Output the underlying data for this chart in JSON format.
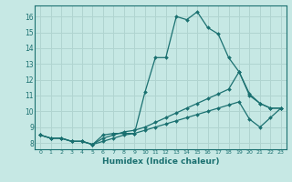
{
  "xlabel": "Humidex (Indice chaleur)",
  "background_color": "#c6e8e4",
  "grid_color": "#b0d4d0",
  "line_color": "#1a7070",
  "xlim": [
    -0.5,
    23.5
  ],
  "ylim": [
    7.6,
    16.7
  ],
  "xticks": [
    0,
    1,
    2,
    3,
    4,
    5,
    6,
    7,
    8,
    9,
    10,
    11,
    12,
    13,
    14,
    15,
    16,
    17,
    18,
    19,
    20,
    21,
    22,
    23
  ],
  "yticks": [
    8,
    9,
    10,
    11,
    12,
    13,
    14,
    15,
    16
  ],
  "series1_x": [
    0,
    1,
    2,
    3,
    4,
    5,
    6,
    7,
    8,
    9,
    10,
    11,
    12,
    13,
    14,
    15,
    16,
    17,
    18,
    19,
    20,
    21,
    22,
    23
  ],
  "series1_y": [
    8.5,
    8.3,
    8.3,
    8.1,
    8.1,
    7.9,
    8.5,
    8.6,
    8.6,
    8.6,
    11.2,
    13.4,
    13.4,
    16.0,
    15.8,
    16.3,
    15.3,
    14.9,
    13.4,
    12.5,
    11.1,
    10.5,
    10.2,
    10.2
  ],
  "series2_x": [
    0,
    1,
    2,
    3,
    4,
    5,
    6,
    7,
    8,
    9,
    10,
    11,
    12,
    13,
    14,
    15,
    16,
    17,
    18,
    19,
    20,
    21,
    22,
    23
  ],
  "series2_y": [
    8.5,
    8.3,
    8.3,
    8.1,
    8.1,
    7.9,
    8.3,
    8.5,
    8.7,
    8.8,
    9.0,
    9.3,
    9.6,
    9.9,
    10.2,
    10.5,
    10.8,
    11.1,
    11.4,
    12.5,
    11.0,
    10.5,
    10.2,
    10.2
  ],
  "series3_x": [
    0,
    1,
    2,
    3,
    4,
    5,
    6,
    7,
    8,
    9,
    10,
    11,
    12,
    13,
    14,
    15,
    16,
    17,
    18,
    19,
    20,
    21,
    22,
    23
  ],
  "series3_y": [
    8.5,
    8.3,
    8.3,
    8.1,
    8.1,
    7.9,
    8.1,
    8.3,
    8.5,
    8.6,
    8.8,
    9.0,
    9.2,
    9.4,
    9.6,
    9.8,
    10.0,
    10.2,
    10.4,
    10.6,
    9.5,
    9.0,
    9.6,
    10.2
  ]
}
